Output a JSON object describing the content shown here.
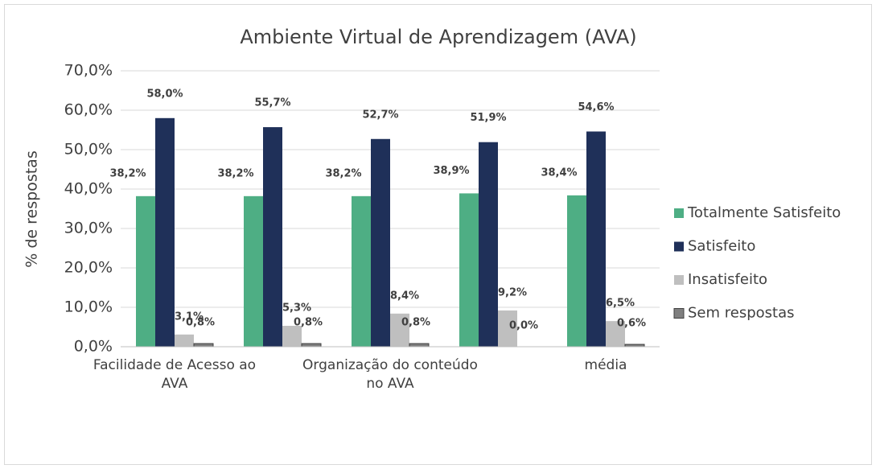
{
  "chart_data": {
    "type": "bar",
    "title": "Ambiente Virtual de Aprendizagem (AVA)",
    "y_label": "% de respostas",
    "categories": [
      "Facilidade de Acesso ao AVA",
      null,
      "Organização do conteúdo no AVA",
      null,
      "média"
    ],
    "series": [
      {
        "name": "Totalmente Satisfeito",
        "color": "#4eae84",
        "values": [
          38.2,
          38.2,
          38.2,
          38.9,
          38.4
        ],
        "value_labels": [
          "38,2%",
          "38,2%",
          "38,2%",
          "38,9%",
          "38,4%"
        ]
      },
      {
        "name": "Satisfeito",
        "color": "#1f3059",
        "values": [
          58.0,
          55.7,
          52.7,
          51.9,
          54.6
        ],
        "value_labels": [
          "58,0%",
          "55,7%",
          "52,7%",
          "51,9%",
          "54,6%"
        ]
      },
      {
        "name": "Insatisfeito",
        "color": "#bfbfbf",
        "values": [
          3.1,
          5.3,
          8.4,
          9.2,
          6.5
        ],
        "value_labels": [
          "3,1%",
          "5,3%",
          "8,4%",
          "9,2%",
          "6,5%"
        ]
      },
      {
        "name": "Sem respostas",
        "color": "#7f7f7f",
        "values": [
          0.8,
          0.8,
          0.8,
          0.0,
          0.6
        ],
        "value_labels": [
          "0,8%",
          "0,8%",
          "0,8%",
          "0,0%",
          "0,6%"
        ]
      }
    ],
    "ylim": [
      0,
      70
    ],
    "yticks": [
      {
        "value": 0,
        "label": "0,0%"
      },
      {
        "value": 10,
        "label": "10,0%"
      },
      {
        "value": 20,
        "label": "20,0%"
      },
      {
        "value": 30,
        "label": "30,0%"
      },
      {
        "value": 40,
        "label": "40,0%"
      },
      {
        "value": 50,
        "label": "50,0%"
      },
      {
        "value": 60,
        "label": "60,0%"
      },
      {
        "value": 70,
        "label": "70,0%"
      }
    ],
    "grid": true,
    "legend": "right"
  }
}
